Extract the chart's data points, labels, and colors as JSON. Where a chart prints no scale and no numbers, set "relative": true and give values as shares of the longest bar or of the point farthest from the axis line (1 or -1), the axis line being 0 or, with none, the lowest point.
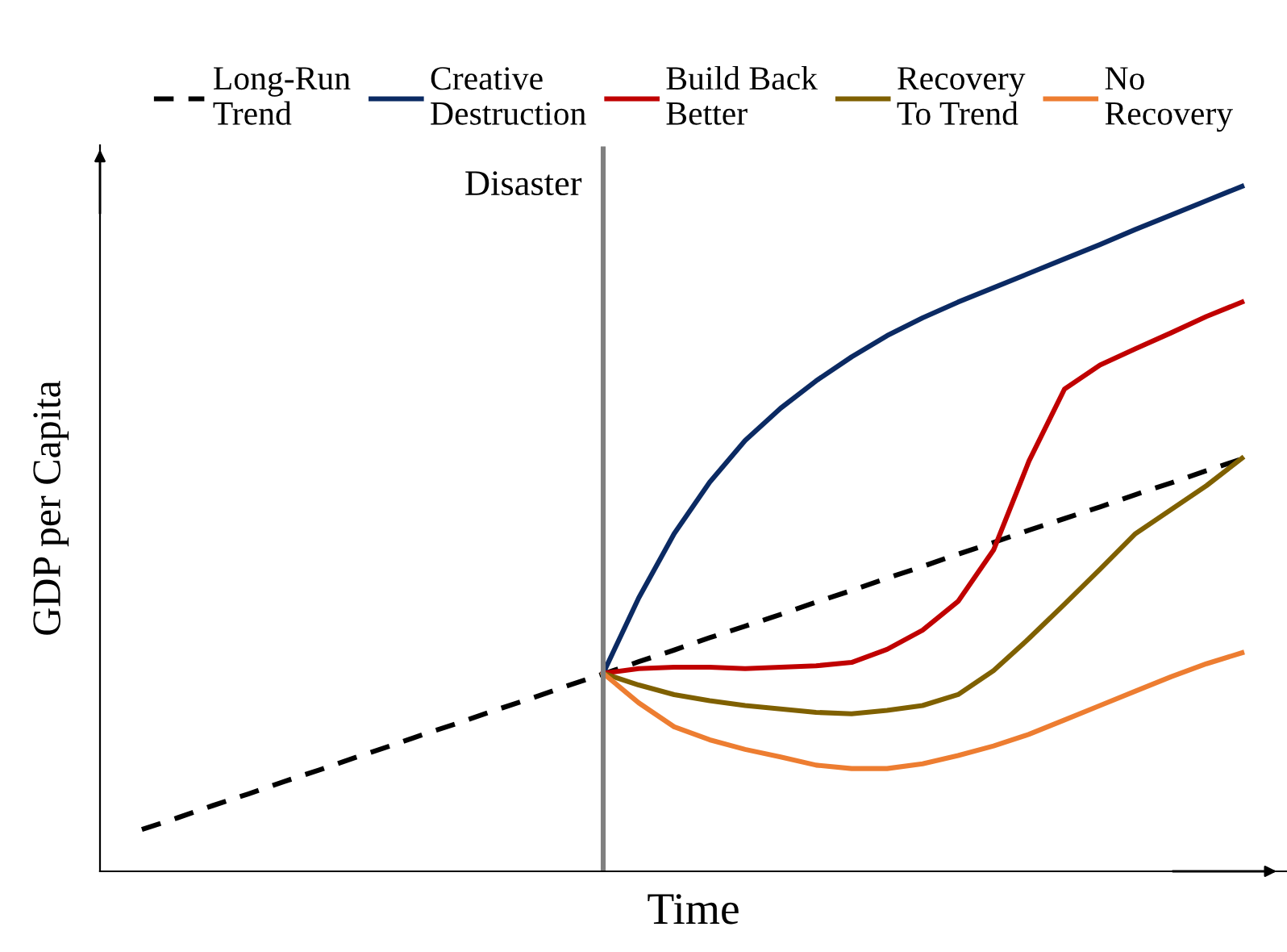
{
  "chart_data": {
    "type": "line",
    "relative": true,
    "xlabel": "Time",
    "ylabel": "GDP per Capita",
    "legend": "top",
    "categories": [
      null,
      null,
      null,
      null,
      null,
      null,
      null,
      null,
      null,
      null,
      null,
      null,
      null,
      null,
      null,
      null,
      null,
      null,
      null,
      null,
      null,
      null,
      null,
      null,
      null,
      null,
      null,
      null,
      null,
      null,
      null,
      null
    ],
    "series": [
      {
        "name": "Long-Run\nTrend",
        "color": "#000000",
        "line_style": "dashed",
        "values": [
          0.061,
          0.078,
          0.096,
          0.113,
          0.131,
          0.148,
          0.166,
          0.183,
          0.201,
          0.218,
          0.236,
          0.253,
          0.271,
          0.288,
          0.306,
          0.323,
          0.341,
          0.358,
          0.375,
          0.393,
          0.41,
          0.428,
          0.445,
          0.463,
          0.48,
          0.498,
          0.515,
          0.532,
          0.55,
          0.567,
          0.585,
          0.602
        ]
      },
      {
        "name": "Creative\nDestruction",
        "color": "#0b2a63",
        "line_style": "solid",
        "values": [
          null,
          null,
          null,
          null,
          null,
          null,
          null,
          null,
          null,
          null,
          null,
          null,
          null,
          0.289,
          0.399,
          0.493,
          0.568,
          0.629,
          0.676,
          0.716,
          0.751,
          0.782,
          0.808,
          0.831,
          0.852,
          0.873,
          0.894,
          0.915,
          0.937,
          0.958,
          0.979,
          1.0
        ]
      },
      {
        "name": "Build Back\nBetter",
        "color": "#c00000",
        "line_style": "solid",
        "values": [
          null,
          null,
          null,
          null,
          null,
          null,
          null,
          null,
          null,
          null,
          null,
          null,
          null,
          0.289,
          0.296,
          0.298,
          0.298,
          0.296,
          0.298,
          0.3,
          0.305,
          0.324,
          0.352,
          0.394,
          0.469,
          0.599,
          0.704,
          0.739,
          0.763,
          0.786,
          0.81,
          0.831
        ]
      },
      {
        "name": "Recovery\nTo Trend",
        "color": "#7f6000",
        "line_style": "solid",
        "values": [
          null,
          null,
          null,
          null,
          null,
          null,
          null,
          null,
          null,
          null,
          null,
          null,
          null,
          0.289,
          0.272,
          0.258,
          0.249,
          0.242,
          0.237,
          0.232,
          0.23,
          0.235,
          0.242,
          0.258,
          0.293,
          0.34,
          0.39,
          0.441,
          0.493,
          0.528,
          0.563,
          0.603
        ]
      },
      {
        "name": "No\nRecovery",
        "color": "#ed7d31",
        "line_style": "solid",
        "values": [
          null,
          null,
          null,
          null,
          null,
          null,
          null,
          null,
          null,
          null,
          null,
          null,
          null,
          0.289,
          0.246,
          0.211,
          0.192,
          0.178,
          0.167,
          0.155,
          0.15,
          0.15,
          0.157,
          0.169,
          0.183,
          0.2,
          0.221,
          0.242,
          0.263,
          0.284,
          0.303,
          0.319
        ]
      }
    ],
    "annotations": [
      "Disaster"
    ]
  }
}
